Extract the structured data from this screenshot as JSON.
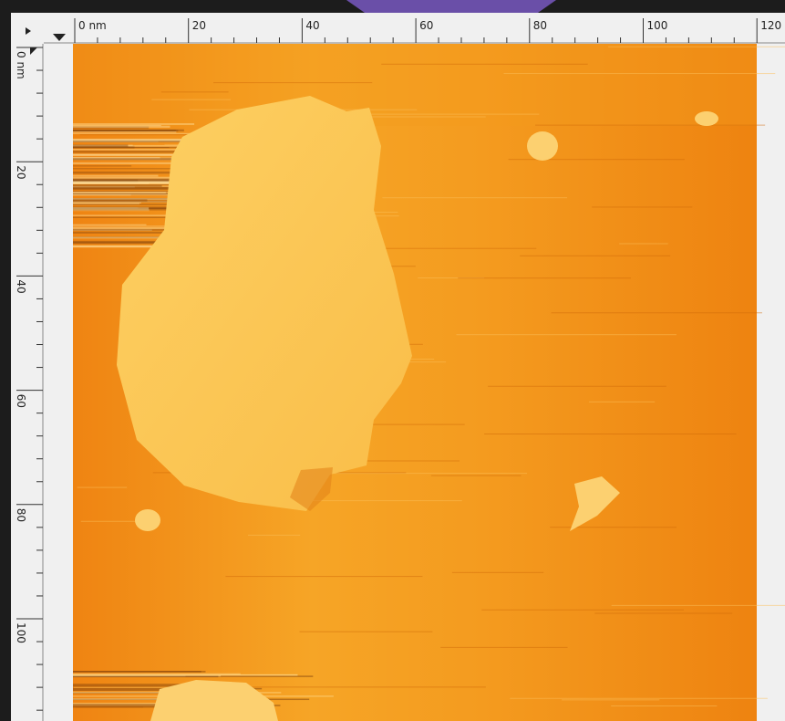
{
  "top_ruler": {
    "labels": [
      "0 nm",
      "20",
      "40",
      "60",
      "80",
      "100",
      "120"
    ]
  },
  "left_ruler": {
    "labels": [
      "0 nm",
      "20",
      "40",
      "60",
      "80",
      "100"
    ]
  }
}
